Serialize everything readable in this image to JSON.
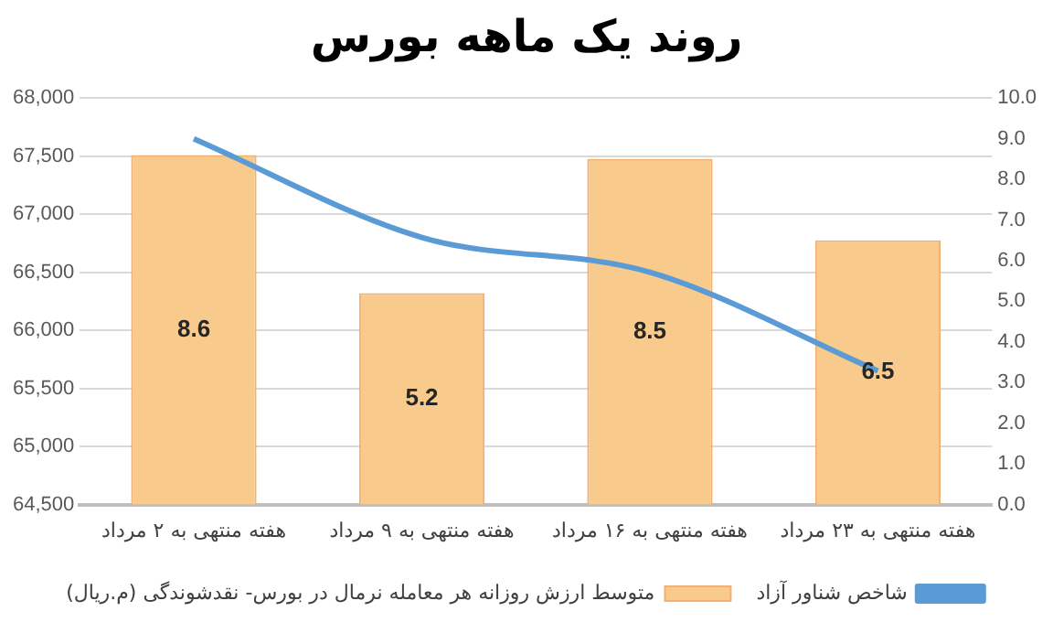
{
  "chart_data": {
    "type": "bar",
    "title": "روند یک ماهه بورس",
    "categories": [
      "هفته منتهی به ۲ مرداد",
      "هفته منتهی به ۹ مرداد",
      "هفته منتهی به ۱۶ مرداد",
      "هفته منتهی به ۲۳ مرداد"
    ],
    "series": [
      {
        "name": "شاخص شناور آزاد",
        "type": "line",
        "color": "#5b9bd5",
        "values": [
          67650,
          66800,
          66500,
          65650
        ]
      },
      {
        "name": "متوسط ارزش روزانه هر معامله نرمال در بورس- نقدشوندگی (م.ریال)",
        "axis": "y2",
        "color": "#f8cb8c",
        "values": [
          8.6,
          5.2,
          8.5,
          6.5
        ],
        "data_labels": true
      }
    ],
    "ylim": [
      64500,
      68000
    ],
    "yticks": [
      {
        "value": 64500,
        "label": "64,500"
      },
      {
        "value": 65000,
        "label": "65,000"
      },
      {
        "value": 65500,
        "label": "65,500"
      },
      {
        "value": 66000,
        "label": "66,000"
      },
      {
        "value": 66500,
        "label": "66,500"
      },
      {
        "value": 67000,
        "label": "67,000"
      },
      {
        "value": 67500,
        "label": "67,500"
      },
      {
        "value": 68000,
        "label": "68,000"
      }
    ],
    "y2lim": [
      0,
      10
    ],
    "y2ticks": [
      {
        "value": 0,
        "label": "0.0"
      },
      {
        "value": 1,
        "label": "1.0"
      },
      {
        "value": 2,
        "label": "2.0"
      },
      {
        "value": 3,
        "label": "3.0"
      },
      {
        "value": 4,
        "label": "4.0"
      },
      {
        "value": 5,
        "label": "5.0"
      },
      {
        "value": 6,
        "label": "6.0"
      },
      {
        "value": 7,
        "label": "7.0"
      },
      {
        "value": 8,
        "label": "8.0"
      },
      {
        "value": 9,
        "label": "9.0"
      },
      {
        "value": 10,
        "label": "10.0"
      }
    ],
    "grid": "y",
    "legend": "bottom",
    "marker": "none"
  }
}
